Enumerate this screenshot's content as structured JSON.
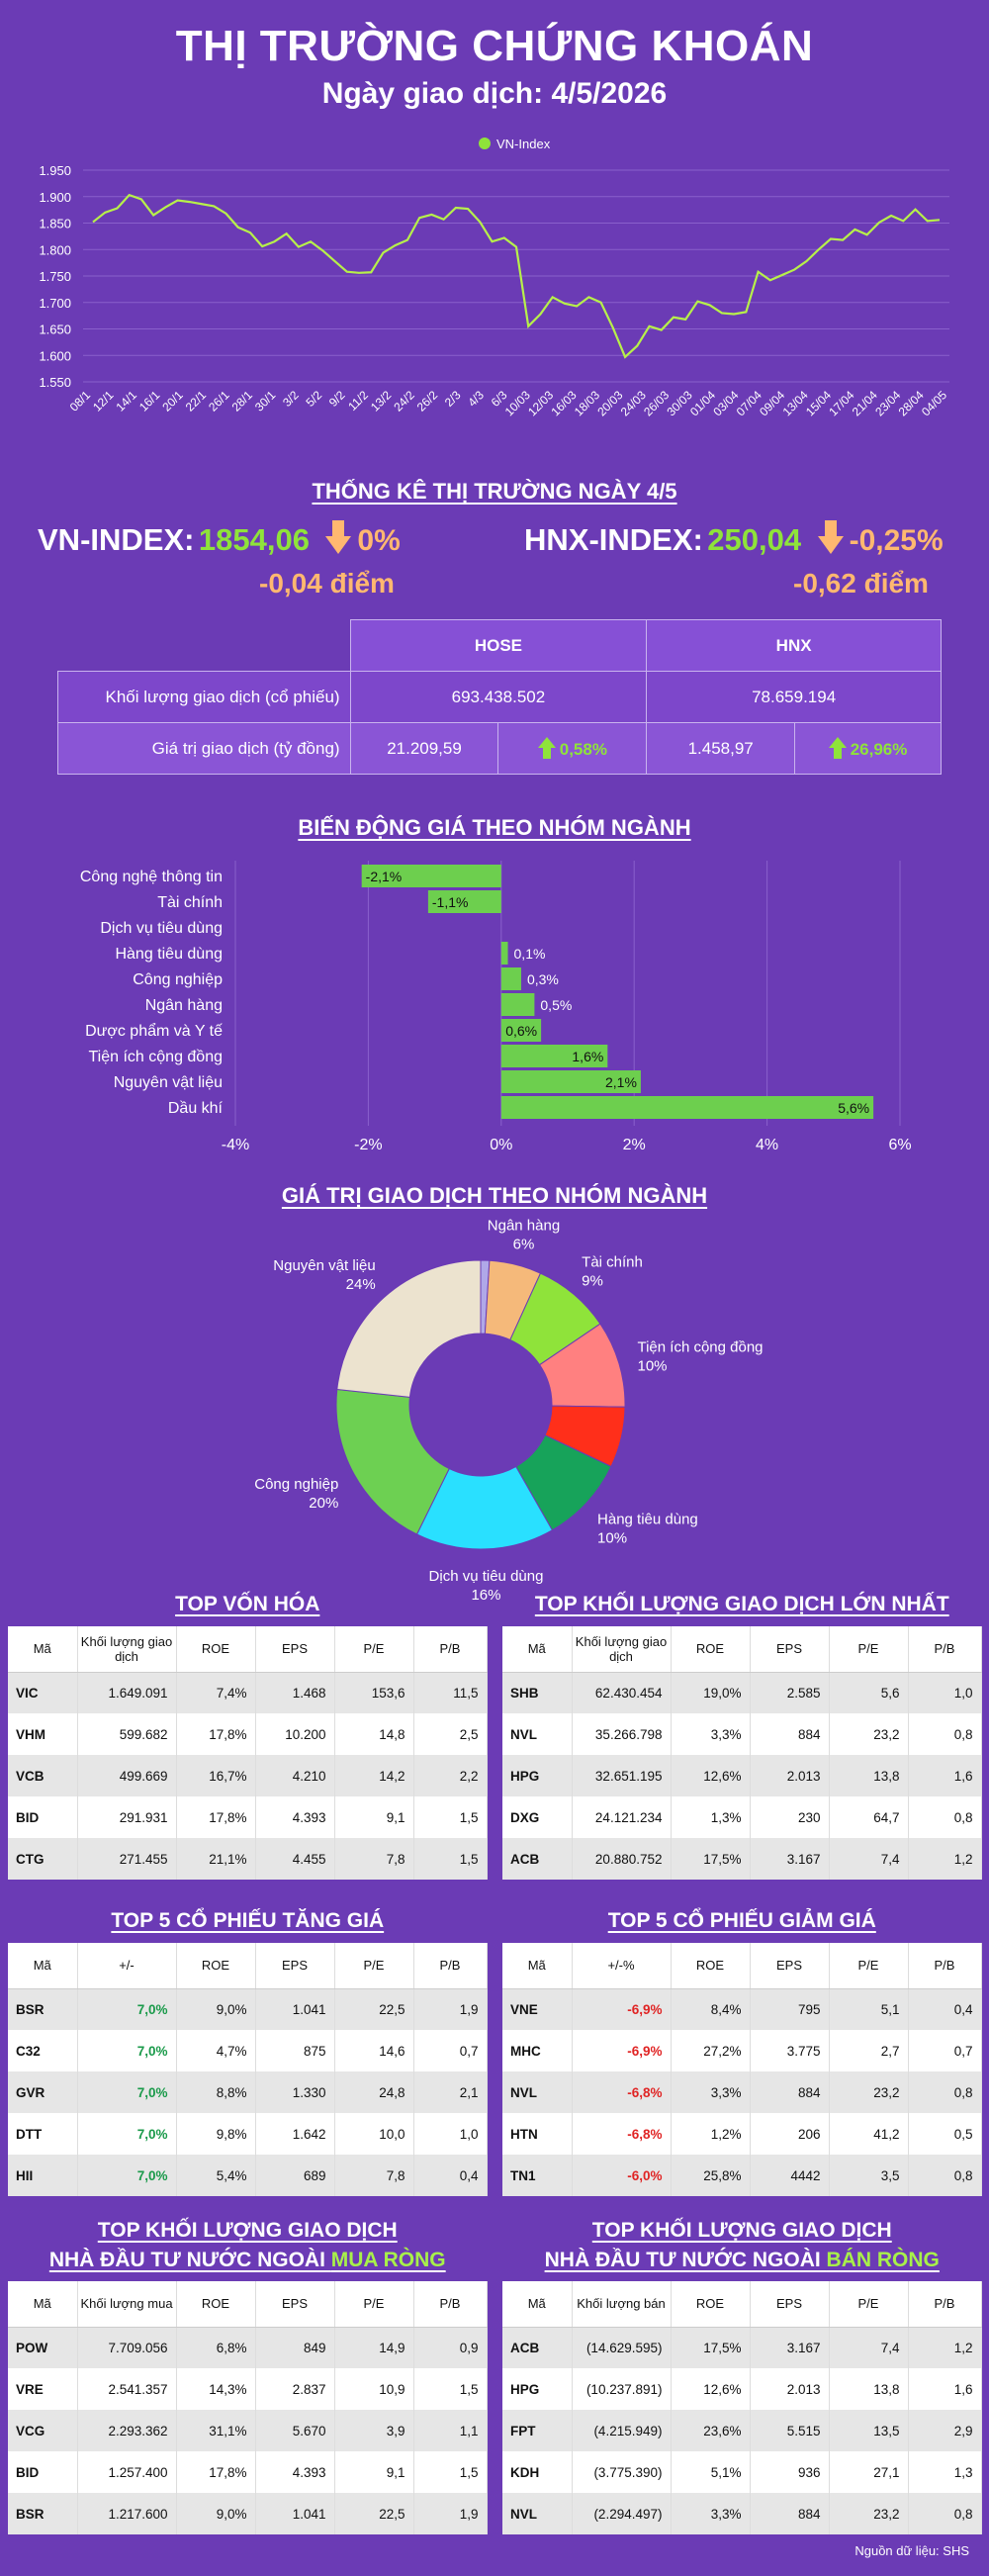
{
  "header": {
    "title": "THỊ TRƯỜNG CHỨNG KHOÁN",
    "subtitle": "Ngày giao dịch: 4/5/2026"
  },
  "colors": {
    "background": "#6b3bb5",
    "up": "#8fe33a",
    "down": "#ffb870",
    "bar": "#6dcf4e"
  },
  "line_chart_legend": "VN-Index",
  "chart_data": [
    {
      "type": "line",
      "series": [
        {
          "name": "VN-Index",
          "values": [
            1852,
            1870,
            1878,
            1903,
            1895,
            1865,
            1880,
            1893,
            1890,
            1886,
            1882,
            1868,
            1842,
            1832,
            1806,
            1815,
            1830,
            1805,
            1815,
            1798,
            1778,
            1758,
            1756,
            1757,
            1794,
            1808,
            1818,
            1860,
            1866,
            1857,
            1879,
            1877,
            1852,
            1815,
            1822,
            1805,
            1655,
            1678,
            1710,
            1698,
            1693,
            1710,
            1700,
            1652,
            1597,
            1618,
            1655,
            1648,
            1672,
            1668,
            1702,
            1695,
            1680,
            1678,
            1682,
            1758,
            1742,
            1752,
            1762,
            1778,
            1800,
            1820,
            1818,
            1838,
            1828,
            1851,
            1864,
            1854,
            1876,
            1854,
            1856
          ]
        }
      ],
      "x_tick_labels": [
        "08/1",
        "12/1",
        "14/1",
        "16/1",
        "20/1",
        "22/1",
        "26/1",
        "28/1",
        "30/1",
        "3/2",
        "5/2",
        "9/2",
        "11/2",
        "13/2",
        "24/2",
        "26/2",
        "2/3",
        "4/3",
        "6/3",
        "10/03",
        "12/03",
        "16/03",
        "18/03",
        "20/03",
        "24/03",
        "26/03",
        "30/03",
        "01/04",
        "03/04",
        "07/04",
        "09/04",
        "13/04",
        "15/04",
        "17/04",
        "21/04",
        "23/04",
        "28/04",
        "04/05"
      ],
      "y_ticks": [
        1550,
        1600,
        1650,
        1700,
        1750,
        1800,
        1850,
        1900,
        1950
      ],
      "y_tick_labels": [
        "1.550",
        "1.600",
        "1.650",
        "1.700",
        "1.750",
        "1.800",
        "1.850",
        "1.900",
        "1.950"
      ],
      "ylim": [
        1550,
        1950
      ],
      "grid": true,
      "legend": "top-center"
    },
    {
      "type": "bar",
      "orientation": "horizontal",
      "title": "BIẾN ĐỘNG GIÁ THEO NHÓM NGÀNH",
      "categories": [
        "Công nghệ thông tin",
        "Tài chính",
        "Dịch vụ tiêu dùng",
        "Hàng tiêu dùng",
        "Công nghiệp",
        "Ngân hàng",
        "Dược phẩm và Y tế",
        "Tiện ích cộng đồng",
        "Nguyên vật liệu",
        "Dầu khí"
      ],
      "values": [
        -2.1,
        -1.1,
        0,
        0.1,
        0.3,
        0.5,
        0.6,
        1.6,
        2.1,
        5.6
      ],
      "value_labels": [
        "-2,1%",
        "-1,1%",
        "",
        "0,1%",
        "0,3%",
        "0,5%",
        "0,6%",
        "1,6%",
        "2,1%",
        "5,6%"
      ],
      "x_ticks": [
        -4,
        -2,
        0,
        2,
        4,
        6
      ],
      "x_tick_labels": [
        "-4%",
        "-2%",
        "0%",
        "2%",
        "4%",
        "6%"
      ],
      "xlim": [
        -4,
        6
      ],
      "grid": true
    },
    {
      "type": "pie",
      "title": "GIÁ TRỊ GIAO DỊCH THEO NHÓM NGÀNH",
      "slices": [
        {
          "label": "",
          "value": 1,
          "color": "#b0a8e8"
        },
        {
          "label": "Ngân hàng",
          "pct": "6%",
          "value": 6,
          "color": "#f5b97a"
        },
        {
          "label": "Tài chính",
          "pct": "9%",
          "value": 9,
          "color": "#8fe33a"
        },
        {
          "label": "Tiện ích cộng đồng",
          "pct": "10%",
          "value": 10,
          "color": "#ff8080"
        },
        {
          "label": "",
          "value": 7,
          "color": "#ff2f1a"
        },
        {
          "label": "Hàng tiêu dùng",
          "pct": "10%",
          "value": 10,
          "color": "#17a35a"
        },
        {
          "label": "Dịch vụ tiêu dùng",
          "pct": "16%",
          "value": 16,
          "color": "#29e0ff"
        },
        {
          "label": "Công nghiệp",
          "pct": "20%",
          "value": 20,
          "color": "#6dd052"
        },
        {
          "label": "Nguyên vật liệu",
          "pct": "24%",
          "value": 24,
          "color": "#ece3cf"
        }
      ]
    }
  ],
  "stats": {
    "title": "THỐNG KÊ THỊ TRƯỜNG NGÀY 4/5",
    "vn": {
      "name": "VN-INDEX:",
      "value": "1854,06",
      "pct": "0%",
      "pts": "-0,04 điểm"
    },
    "hnx": {
      "name": "HNX-INDEX:",
      "value": "250,04",
      "pct": "-0,25%",
      "pts": "-0,62 điểm"
    },
    "col_hose": "HOSE",
    "col_hnx": "HNX",
    "row1": {
      "label": "Khối lượng giao dịch (cổ phiếu)",
      "hose": "693.438.502",
      "hnx": "78.659.194"
    },
    "row2": {
      "label": "Giá trị giao dịch (tỷ đồng)",
      "hose": "21.209,59",
      "hose_pct": "0,58%",
      "hnx": "1.458,97",
      "hnx_pct": "26,96%"
    }
  },
  "t1": {
    "title": "TOP VỐN HÓA",
    "cols": [
      "Mã",
      "Khối lượng giao dịch",
      "ROE",
      "EPS",
      "P/E",
      "P/B"
    ],
    "rows": [
      [
        "VIC",
        "1.649.091",
        "7,4%",
        "1.468",
        "153,6",
        "11,5"
      ],
      [
        "VHM",
        "599.682",
        "17,8%",
        "10.200",
        "14,8",
        "2,5"
      ],
      [
        "VCB",
        "499.669",
        "16,7%",
        "4.210",
        "14,2",
        "2,2"
      ],
      [
        "BID",
        "291.931",
        "17,8%",
        "4.393",
        "9,1",
        "1,5"
      ],
      [
        "CTG",
        "271.455",
        "21,1%",
        "4.455",
        "7,8",
        "1,5"
      ]
    ]
  },
  "t2": {
    "title": "TOP KHỐI LƯỢNG GIAO DỊCH LỚN NHẤT",
    "cols": [
      "Mã",
      "Khối lượng giao dịch",
      "ROE",
      "EPS",
      "P/E",
      "P/B"
    ],
    "rows": [
      [
        "SHB",
        "62.430.454",
        "19,0%",
        "2.585",
        "5,6",
        "1,0"
      ],
      [
        "NVL",
        "35.266.798",
        "3,3%",
        "884",
        "23,2",
        "0,8"
      ],
      [
        "HPG",
        "32.651.195",
        "12,6%",
        "2.013",
        "13,8",
        "1,6"
      ],
      [
        "DXG",
        "24.121.234",
        "1,3%",
        "230",
        "64,7",
        "0,8"
      ],
      [
        "ACB",
        "20.880.752",
        "17,5%",
        "3.167",
        "7,4",
        "1,2"
      ]
    ]
  },
  "t3": {
    "title": "TOP 5 CỔ PHIẾU TĂNG GIÁ",
    "cols": [
      "Mã",
      "+/-",
      "ROE",
      "EPS",
      "P/E",
      "P/B"
    ],
    "rows": [
      [
        "BSR",
        "7,0%",
        "9,0%",
        "1.041",
        "22,5",
        "1,9"
      ],
      [
        "C32",
        "7,0%",
        "4,7%",
        "875",
        "14,6",
        "0,7"
      ],
      [
        "GVR",
        "7,0%",
        "8,8%",
        "1.330",
        "24,8",
        "2,1"
      ],
      [
        "DTT",
        "7,0%",
        "9,8%",
        "1.642",
        "10,0",
        "1,0"
      ],
      [
        "HII",
        "7,0%",
        "5,4%",
        "689",
        "7,8",
        "0,4"
      ]
    ]
  },
  "t4": {
    "title": "TOP 5 CỔ PHIẾU GIẢM GIÁ",
    "cols": [
      "Mã",
      "+/-%",
      "ROE",
      "EPS",
      "P/E",
      "P/B"
    ],
    "rows": [
      [
        "VNE",
        "-6,9%",
        "8,4%",
        "795",
        "5,1",
        "0,4"
      ],
      [
        "MHC",
        "-6,9%",
        "27,2%",
        "3.775",
        "2,7",
        "0,7"
      ],
      [
        "NVL",
        "-6,8%",
        "3,3%",
        "884",
        "23,2",
        "0,8"
      ],
      [
        "HTN",
        "-6,8%",
        "1,2%",
        "206",
        "41,2",
        "0,5"
      ],
      [
        "TN1",
        "-6,0%",
        "25,8%",
        "4442",
        "3,5",
        "0,8"
      ]
    ]
  },
  "t5": {
    "title1": "TOP KHỐI LƯỢNG GIAO DỊCH",
    "title2a": "NHÀ ĐẦU TƯ NƯỚC NGOÀI ",
    "title2b": "MUA RÒNG",
    "cols": [
      "Mã",
      "Khối lượng mua",
      "ROE",
      "EPS",
      "P/E",
      "P/B"
    ],
    "rows": [
      [
        "POW",
        "7.709.056",
        "6,8%",
        "849",
        "14,9",
        "0,9"
      ],
      [
        "VRE",
        "2.541.357",
        "14,3%",
        "2.837",
        "10,9",
        "1,5"
      ],
      [
        "VCG",
        "2.293.362",
        "31,1%",
        "5.670",
        "3,9",
        "1,1"
      ],
      [
        "BID",
        "1.257.400",
        "17,8%",
        "4.393",
        "9,1",
        "1,5"
      ],
      [
        "BSR",
        "1.217.600",
        "9,0%",
        "1.041",
        "22,5",
        "1,9"
      ]
    ]
  },
  "t6": {
    "title1": "TOP KHỐI LƯỢNG GIAO DỊCH",
    "title2a": "NHÀ ĐẦU TƯ NƯỚC NGOÀI ",
    "title2b": "BÁN RÒNG",
    "cols": [
      "Mã",
      "Khối lượng bán",
      "ROE",
      "EPS",
      "P/E",
      "P/B"
    ],
    "rows": [
      [
        "ACB",
        "(14.629.595)",
        "17,5%",
        "3.167",
        "7,4",
        "1,2"
      ],
      [
        "HPG",
        "(10.237.891)",
        "12,6%",
        "2.013",
        "13,8",
        "1,6"
      ],
      [
        "FPT",
        "(4.215.949)",
        "23,6%",
        "5.515",
        "13,5",
        "2,9"
      ],
      [
        "KDH",
        "(3.775.390)",
        "5,1%",
        "936",
        "27,1",
        "1,3"
      ],
      [
        "NVL",
        "(2.294.497)",
        "3,3%",
        "884",
        "23,2",
        "0,8"
      ]
    ]
  },
  "source": "Nguồn dữ liệu: SHS"
}
